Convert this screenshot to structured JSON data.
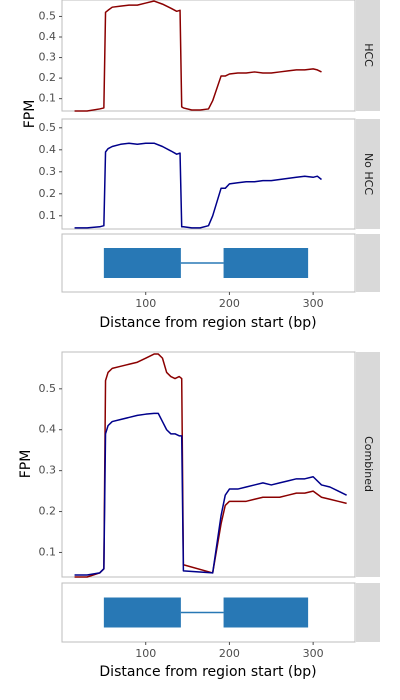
{
  "colors": {
    "hcc": "#8B0000",
    "no_hcc": "#00008B",
    "exon": "#2878B5",
    "strip": "#d9d9d9",
    "frame": "#bdbdbd"
  },
  "chart_data": [
    {
      "type": "line",
      "facet": "HCC",
      "ylabel": "",
      "xlim": [
        0,
        350
      ],
      "ylim": [
        0.04,
        0.58
      ],
      "yticks": [
        0.1,
        0.2,
        0.3,
        0.4,
        0.5
      ],
      "ytick_labels": [
        "0.1",
        "0.2",
        "0.3",
        "0.4",
        "0.5"
      ],
      "series": [
        {
          "color_key": "hcc",
          "x": [
            15,
            30,
            45,
            50,
            52,
            55,
            60,
            70,
            80,
            90,
            100,
            110,
            120,
            130,
            137,
            141,
            143,
            145,
            155,
            165,
            175,
            180,
            190,
            195,
            200,
            210,
            220,
            230,
            240,
            250,
            260,
            270,
            280,
            290,
            300,
            305,
            310
          ],
          "y": [
            0.04,
            0.04,
            0.05,
            0.055,
            0.52,
            0.53,
            0.545,
            0.55,
            0.555,
            0.555,
            0.565,
            0.575,
            0.56,
            0.54,
            0.525,
            0.53,
            0.06,
            0.055,
            0.045,
            0.045,
            0.05,
            0.09,
            0.21,
            0.21,
            0.22,
            0.225,
            0.225,
            0.23,
            0.225,
            0.225,
            0.23,
            0.235,
            0.24,
            0.24,
            0.245,
            0.24,
            0.23
          ]
        }
      ]
    },
    {
      "type": "line",
      "facet": "No HCC",
      "ylabel": "",
      "xlim": [
        0,
        350
      ],
      "ylim": [
        0.04,
        0.54
      ],
      "yticks": [
        0.1,
        0.2,
        0.3,
        0.4,
        0.5
      ],
      "ytick_labels": [
        "0.1",
        "0.2",
        "0.3",
        "0.4",
        "0.5"
      ],
      "series": [
        {
          "color_key": "no_hcc",
          "x": [
            15,
            30,
            45,
            50,
            52,
            55,
            60,
            70,
            80,
            90,
            100,
            110,
            120,
            130,
            137,
            141,
            143,
            145,
            155,
            165,
            175,
            180,
            190,
            195,
            200,
            210,
            220,
            230,
            240,
            250,
            260,
            270,
            280,
            290,
            300,
            305,
            310
          ],
          "y": [
            0.045,
            0.045,
            0.05,
            0.055,
            0.39,
            0.405,
            0.415,
            0.425,
            0.43,
            0.425,
            0.43,
            0.43,
            0.415,
            0.395,
            0.38,
            0.385,
            0.05,
            0.05,
            0.045,
            0.045,
            0.055,
            0.1,
            0.225,
            0.225,
            0.245,
            0.25,
            0.255,
            0.255,
            0.26,
            0.26,
            0.265,
            0.27,
            0.275,
            0.28,
            0.275,
            0.28,
            0.265
          ]
        }
      ]
    },
    {
      "type": "gene-model",
      "xlim": [
        0,
        350
      ],
      "xlabel": "Distance from region start (bp)",
      "xticks": [
        100,
        200,
        300
      ],
      "xtick_labels": [
        "100",
        "200",
        "300"
      ],
      "exons": [
        [
          50,
          142
        ],
        [
          193,
          294
        ]
      ],
      "intron": [
        142,
        193
      ]
    },
    {
      "type": "line",
      "facet": "Combined",
      "ylabel": "",
      "xlim": [
        0,
        350
      ],
      "ylim": [
        0.04,
        0.59
      ],
      "yticks": [
        0.1,
        0.2,
        0.3,
        0.4,
        0.5
      ],
      "ytick_labels": [
        "0.1",
        "0.2",
        "0.3",
        "0.4",
        "0.5"
      ],
      "series": [
        {
          "color_key": "hcc",
          "x": [
            15,
            30,
            45,
            50,
            52,
            55,
            60,
            70,
            80,
            90,
            100,
            110,
            115,
            120,
            125,
            130,
            135,
            140,
            143,
            145,
            180,
            190,
            195,
            200,
            210,
            220,
            230,
            240,
            250,
            260,
            270,
            280,
            290,
            300,
            310,
            320,
            330,
            340
          ],
          "y": [
            0.04,
            0.04,
            0.05,
            0.06,
            0.52,
            0.54,
            0.55,
            0.555,
            0.56,
            0.565,
            0.575,
            0.585,
            0.585,
            0.575,
            0.54,
            0.53,
            0.525,
            0.53,
            0.525,
            0.07,
            0.05,
            0.17,
            0.215,
            0.225,
            0.225,
            0.225,
            0.23,
            0.235,
            0.235,
            0.235,
            0.24,
            0.245,
            0.245,
            0.25,
            0.235,
            0.23,
            0.225,
            0.22
          ]
        },
        {
          "color_key": "no_hcc",
          "x": [
            15,
            30,
            45,
            50,
            52,
            55,
            60,
            70,
            80,
            90,
            100,
            110,
            115,
            120,
            125,
            130,
            135,
            140,
            143,
            145,
            180,
            190,
            195,
            200,
            210,
            220,
            230,
            240,
            250,
            260,
            270,
            280,
            290,
            300,
            310,
            320,
            330,
            340
          ],
          "y": [
            0.045,
            0.045,
            0.05,
            0.06,
            0.39,
            0.41,
            0.42,
            0.425,
            0.43,
            0.435,
            0.438,
            0.44,
            0.44,
            0.42,
            0.4,
            0.39,
            0.39,
            0.385,
            0.385,
            0.055,
            0.05,
            0.19,
            0.24,
            0.255,
            0.255,
            0.26,
            0.265,
            0.27,
            0.265,
            0.27,
            0.275,
            0.28,
            0.28,
            0.285,
            0.265,
            0.26,
            0.25,
            0.24
          ]
        }
      ]
    },
    {
      "type": "gene-model",
      "xlim": [
        0,
        350
      ],
      "xlabel": "Distance from region start (bp)",
      "xticks": [
        100,
        200,
        300
      ],
      "xtick_labels": [
        "100",
        "200",
        "300"
      ],
      "exons": [
        [
          50,
          142
        ],
        [
          193,
          294
        ]
      ],
      "intron": [
        142,
        193
      ]
    }
  ],
  "labels": {
    "ylabel_top": "FPM",
    "ylabel_bottom": "FPM",
    "xlabel_top": "Distance from region start (bp)",
    "xlabel_bottom": "Distance from region start (bp)",
    "strip_hcc": "HCC",
    "strip_no_hcc": "No HCC",
    "strip_combined": "Combined"
  }
}
